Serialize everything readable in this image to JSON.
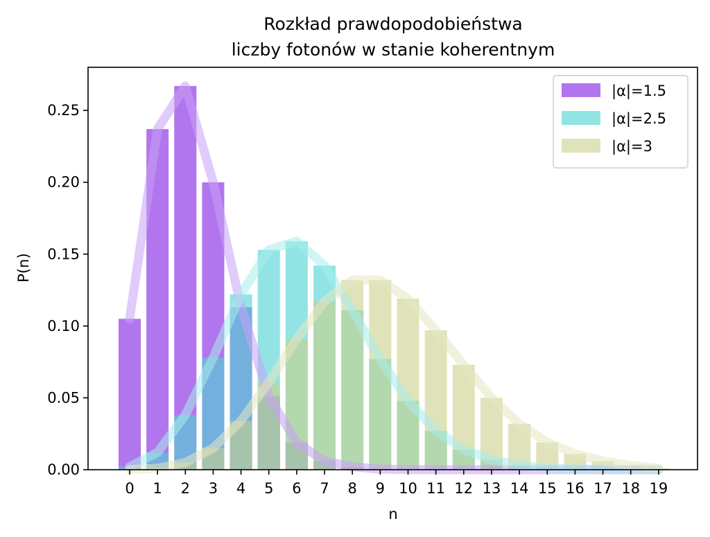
{
  "chart_data": {
    "type": "bar",
    "title_lines": [
      "Rozkład prawdopodobieństwa",
      "liczby fotonów w stanie koherentnym"
    ],
    "xlabel": "n",
    "ylabel": "P(n)",
    "x": [
      0,
      1,
      2,
      3,
      4,
      5,
      6,
      7,
      8,
      9,
      10,
      11,
      12,
      13,
      14,
      15,
      16,
      17,
      18,
      19
    ],
    "x_tick_labels": [
      "0",
      "1",
      "2",
      "3",
      "4",
      "5",
      "6",
      "7",
      "8",
      "9",
      "10",
      "11",
      "12",
      "13",
      "14",
      "15",
      "16",
      "17",
      "18",
      "19"
    ],
    "ylim": [
      0,
      0.28
    ],
    "y_ticks": [
      0.0,
      0.05,
      0.1,
      0.15,
      0.2,
      0.25
    ],
    "y_tick_labels": [
      "0.00",
      "0.05",
      "0.10",
      "0.15",
      "0.20",
      "0.25"
    ],
    "legend_position": "top-right",
    "series": [
      {
        "name": "|α|=1.5",
        "color": "#9b50e8",
        "bar_opacity": 0.78,
        "line_color": "#c9a0f5",
        "values": [
          0.105,
          0.237,
          0.267,
          0.2,
          0.113,
          0.051,
          0.019,
          0.006,
          0.002,
          0.0004,
          0.0001,
          0.0,
          0.0,
          0.0,
          0.0,
          0.0,
          0.0,
          0.0,
          0.0,
          0.0
        ]
      },
      {
        "name": "|α|=2.5",
        "color": "#4fd3d3",
        "bar_opacity": 0.62,
        "line_color": "#a7eded",
        "values": [
          0.002,
          0.012,
          0.038,
          0.078,
          0.122,
          0.153,
          0.159,
          0.142,
          0.111,
          0.077,
          0.048,
          0.027,
          0.014,
          0.007,
          0.003,
          0.001,
          0.0005,
          0.0002,
          0.0,
          0.0
        ]
      },
      {
        "name": "|α|=3",
        "color": "#ccd08a",
        "bar_opacity": 0.6,
        "line_color": "#e6e8c3",
        "values": [
          0.0001,
          0.001,
          0.005,
          0.015,
          0.034,
          0.061,
          0.091,
          0.117,
          0.132,
          0.132,
          0.119,
          0.097,
          0.073,
          0.05,
          0.032,
          0.019,
          0.011,
          0.006,
          0.003,
          0.001
        ]
      }
    ]
  }
}
